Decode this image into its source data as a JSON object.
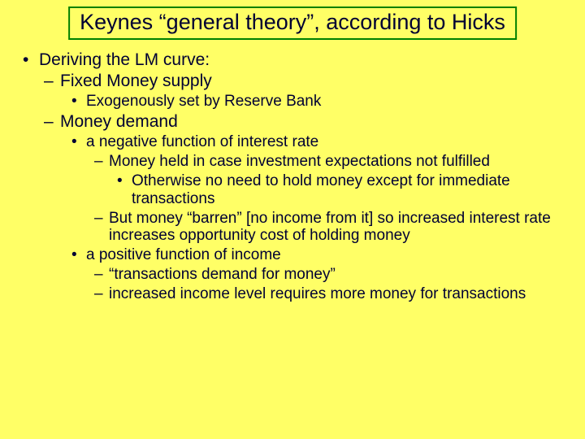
{
  "colors": {
    "background": "#ffff66",
    "text": "#000033",
    "title_border": "#008000"
  },
  "typography": {
    "font_family": "Comic Sans MS",
    "title_fontsize": 27,
    "body_fontsize": 21,
    "sub_fontsize": 19
  },
  "title": "Keynes “general theory”, according to Hicks",
  "b": {
    "l1_a": "Deriving the LM curve:",
    "l2_a": "Fixed Money supply",
    "l3_a": "Exogenously set by Reserve Bank",
    "l2_b": "Money demand",
    "l3_b": "a negative function of interest rate",
    "l4_a": "Money held in case investment expectations not fulfilled",
    "l5_a": "Otherwise no need to hold money except for immediate transactions",
    "l4_b": "But money “barren” [no income from it] so increased interest rate increases opportunity cost of holding money",
    "l3_c": "a positive function of income",
    "l4_c": "“transactions demand for money”",
    "l4_d": "increased income level requires more money for transactions"
  }
}
